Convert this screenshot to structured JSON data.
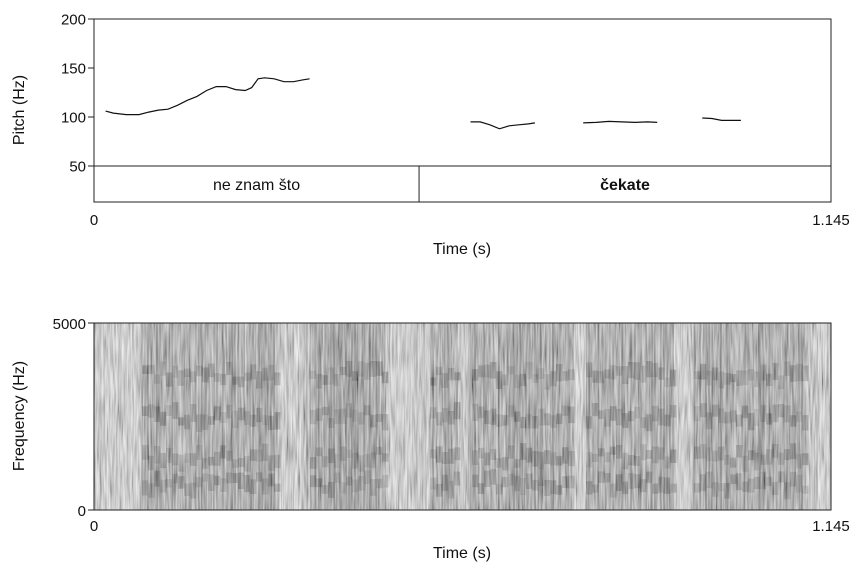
{
  "chart_data": [
    {
      "type": "line",
      "title": "",
      "xlabel": "Time (s)",
      "ylabel": "Pitch (Hz)",
      "xlim": [
        0,
        1.145
      ],
      "ylim": [
        50,
        200
      ],
      "x_tick_labels": [
        "0",
        "1.145"
      ],
      "y_ticks": [
        50,
        100,
        150,
        200
      ],
      "y_tick_labels": [
        "50",
        "100",
        "150",
        "200"
      ],
      "grid": false,
      "series": [
        {
          "segments": [
            [
              [
                0.018,
                106
              ],
              [
                0.03,
                104
              ],
              [
                0.05,
                102.5
              ],
              [
                0.07,
                102.5
              ],
              [
                0.085,
                105
              ],
              [
                0.1,
                107
              ],
              [
                0.115,
                108
              ],
              [
                0.13,
                112
              ],
              [
                0.145,
                117
              ],
              [
                0.16,
                121
              ],
              [
                0.175,
                127
              ],
              [
                0.19,
                131
              ],
              [
                0.205,
                131
              ],
              [
                0.22,
                128
              ],
              [
                0.235,
                127
              ],
              [
                0.245,
                130
              ],
              [
                0.255,
                139
              ],
              [
                0.265,
                140
              ],
              [
                0.28,
                139
              ],
              [
                0.295,
                136
              ],
              [
                0.31,
                136
              ],
              [
                0.325,
                138
              ],
              [
                0.335,
                139
              ]
            ],
            [
              [
                0.585,
                95
              ],
              [
                0.6,
                95
              ],
              [
                0.615,
                92
              ],
              [
                0.63,
                88
              ],
              [
                0.645,
                91
              ],
              [
                0.66,
                92
              ],
              [
                0.675,
                93
              ],
              [
                0.685,
                94
              ]
            ],
            [
              [
                0.76,
                94
              ],
              [
                0.78,
                94.5
              ],
              [
                0.8,
                95.5
              ],
              [
                0.82,
                95
              ],
              [
                0.84,
                94.5
              ],
              [
                0.86,
                95
              ],
              [
                0.875,
                94.5
              ]
            ],
            [
              [
                0.945,
                99
              ],
              [
                0.96,
                98.5
              ],
              [
                0.975,
                96.5
              ],
              [
                0.99,
                96.5
              ],
              [
                1.005,
                96.5
              ]
            ]
          ]
        }
      ]
    },
    {
      "type": "heatmap",
      "title": "",
      "xlabel": "Time (s)",
      "ylabel": "Frequency (Hz)",
      "xlim": [
        0,
        1.145
      ],
      "ylim": [
        0,
        5000
      ],
      "x_tick_labels": [
        "0",
        "1.145"
      ],
      "y_tick_labels": [
        "0",
        "5000"
      ],
      "colormap": "grayscale",
      "formant_bands_hz": [
        700,
        1400,
        2500,
        3600
      ]
    }
  ],
  "tier": {
    "intervals": [
      {
        "label": "ne znam što",
        "start": 0,
        "end": 0.505,
        "bold": false
      },
      {
        "label": "čekate",
        "start": 0.505,
        "end": 1.145,
        "bold": true
      }
    ]
  },
  "colors": {
    "axis": "#222222",
    "trace": "#111111"
  }
}
